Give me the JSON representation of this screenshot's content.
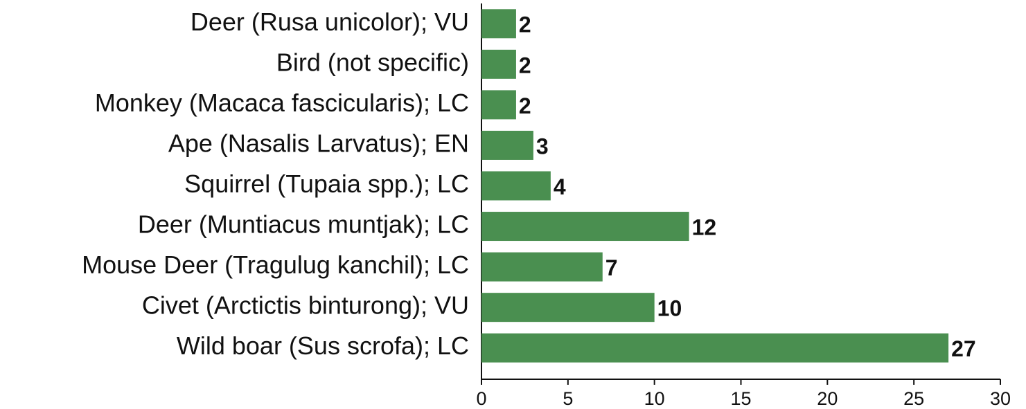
{
  "chart_data": {
    "type": "barh",
    "categories": [
      "Deer (Rusa unicolor); VU",
      "Bird (not specific)",
      "Monkey (Macaca fascicularis); LC",
      "Ape (Nasalis Larvatus); EN",
      "Squirrel (Tupaia spp.); LC",
      "Deer (Muntiacus muntjak); LC",
      "Mouse Deer (Tragulug kanchil); LC",
      "Civet (Arctictis binturong); VU",
      "Wild boar (Sus scrofa); LC"
    ],
    "values": [
      2,
      2,
      2,
      3,
      4,
      12,
      7,
      10,
      27
    ],
    "color": "#4a8f50",
    "xlim": [
      0,
      30
    ],
    "xticks": [
      0,
      5,
      10,
      15,
      20,
      25,
      30
    ]
  }
}
